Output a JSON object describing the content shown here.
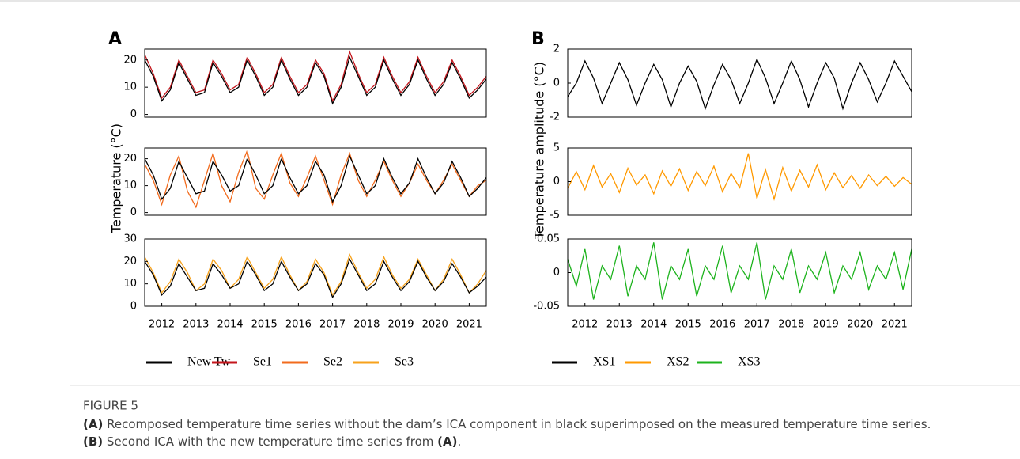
{
  "chart_data": [
    {
      "type": "line",
      "label": "A",
      "x": [
        2011.5,
        2011.75,
        2012,
        2012.25,
        2012.5,
        2012.75,
        2013,
        2013.25,
        2013.5,
        2013.75,
        2014,
        2014.25,
        2014.5,
        2014.75,
        2015,
        2015.25,
        2015.5,
        2015.75,
        2016,
        2016.25,
        2016.5,
        2016.75,
        2017,
        2017.25,
        2017.5,
        2017.75,
        2018,
        2018.25,
        2018.5,
        2018.75,
        2019,
        2019.25,
        2019.5,
        2019.75,
        2020,
        2020.25,
        2020.5,
        2020.75,
        2021,
        2021.25,
        2021.5
      ],
      "xlim": [
        2011.5,
        2021.5
      ],
      "ylim": [
        -1,
        24
      ],
      "yticks": [
        0,
        10,
        20
      ],
      "series": [
        {
          "name": "New Tw",
          "color": "#000000",
          "values": [
            20,
            14,
            5,
            9,
            19,
            13,
            7,
            8,
            19,
            14,
            8,
            10,
            20,
            14,
            7,
            10,
            20,
            13,
            7,
            10,
            19,
            14,
            4,
            10,
            21,
            14,
            7,
            10,
            20,
            13,
            7,
            11,
            20,
            13,
            7,
            11,
            19,
            13,
            6,
            9,
            13
          ]
        },
        {
          "name": "Se1",
          "color": "#c4161c",
          "values": [
            22,
            15,
            6,
            10,
            20,
            14,
            8,
            9,
            20,
            15,
            9,
            11,
            21,
            15,
            8,
            11,
            21,
            14,
            8,
            11,
            20,
            15,
            5,
            11,
            23,
            15,
            8,
            11,
            21,
            14,
            8,
            12,
            21,
            14,
            8,
            12,
            20,
            14,
            7,
            10,
            14
          ]
        }
      ]
    },
    {
      "type": "line",
      "ylabel": "Temperature (°C)",
      "x": [
        2011.5,
        2011.75,
        2012,
        2012.25,
        2012.5,
        2012.75,
        2013,
        2013.25,
        2013.5,
        2013.75,
        2014,
        2014.25,
        2014.5,
        2014.75,
        2015,
        2015.25,
        2015.5,
        2015.75,
        2016,
        2016.25,
        2016.5,
        2016.75,
        2017,
        2017.25,
        2017.5,
        2017.75,
        2018,
        2018.25,
        2018.5,
        2018.75,
        2019,
        2019.25,
        2019.5,
        2019.75,
        2020,
        2020.25,
        2020.5,
        2020.75,
        2021,
        2021.25,
        2021.5
      ],
      "xlim": [
        2011.5,
        2021.5
      ],
      "ylim": [
        -1,
        24
      ],
      "yticks": [
        0,
        10,
        20
      ],
      "series": [
        {
          "name": "New Tw",
          "color": "#000000",
          "values": [
            20,
            14,
            5,
            9,
            19,
            13,
            7,
            8,
            19,
            14,
            8,
            10,
            20,
            14,
            7,
            10,
            20,
            13,
            7,
            10,
            19,
            14,
            4,
            10,
            21,
            14,
            7,
            10,
            20,
            13,
            7,
            11,
            20,
            13,
            7,
            11,
            19,
            13,
            6,
            9,
            13
          ]
        },
        {
          "name": "Se2",
          "color": "#f26b1d",
          "values": [
            18,
            12,
            3,
            14,
            21,
            8,
            2,
            12,
            22,
            10,
            4,
            15,
            23,
            9,
            5,
            14,
            22,
            11,
            6,
            13,
            21,
            12,
            3,
            14,
            22,
            12,
            6,
            12,
            19,
            12,
            6,
            11,
            18,
            12,
            7,
            12,
            18,
            12,
            6,
            10,
            12
          ]
        }
      ]
    },
    {
      "type": "line",
      "x": [
        2011.5,
        2011.75,
        2012,
        2012.25,
        2012.5,
        2012.75,
        2013,
        2013.25,
        2013.5,
        2013.75,
        2014,
        2014.25,
        2014.5,
        2014.75,
        2015,
        2015.25,
        2015.5,
        2015.75,
        2016,
        2016.25,
        2016.5,
        2016.75,
        2017,
        2017.25,
        2017.5,
        2017.75,
        2018,
        2018.25,
        2018.5,
        2018.75,
        2019,
        2019.25,
        2019.5,
        2019.75,
        2020,
        2020.25,
        2020.5,
        2020.75,
        2021,
        2021.25,
        2021.5
      ],
      "xlim": [
        2011.5,
        2021.5
      ],
      "xticks": [
        2012,
        2013,
        2014,
        2015,
        2016,
        2017,
        2018,
        2019,
        2020,
        2021
      ],
      "ylim": [
        0,
        30
      ],
      "yticks": [
        0,
        10,
        20,
        30
      ],
      "series": [
        {
          "name": "New Tw",
          "color": "#000000",
          "values": [
            20,
            14,
            5,
            9,
            19,
            13,
            7,
            8,
            19,
            14,
            8,
            10,
            20,
            14,
            7,
            10,
            20,
            13,
            7,
            10,
            19,
            14,
            4,
            10,
            21,
            14,
            7,
            10,
            20,
            13,
            7,
            11,
            20,
            13,
            7,
            11,
            19,
            13,
            6,
            9,
            13
          ]
        },
        {
          "name": "Se3",
          "color": "#f7a21b",
          "values": [
            22,
            15,
            6,
            11,
            21,
            15,
            7,
            10,
            21,
            16,
            8,
            12,
            22,
            15,
            8,
            12,
            22,
            14,
            7,
            11,
            21,
            15,
            5,
            11,
            23,
            15,
            8,
            12,
            22,
            14,
            8,
            12,
            21,
            14,
            7,
            12,
            21,
            14,
            6,
            10,
            16
          ]
        }
      ]
    },
    {
      "type": "line",
      "label": "B",
      "x": [
        2011.5,
        2011.75,
        2012,
        2012.25,
        2012.5,
        2012.75,
        2013,
        2013.25,
        2013.5,
        2013.75,
        2014,
        2014.25,
        2014.5,
        2014.75,
        2015,
        2015.25,
        2015.5,
        2015.75,
        2016,
        2016.25,
        2016.5,
        2016.75,
        2017,
        2017.25,
        2017.5,
        2017.75,
        2018,
        2018.25,
        2018.5,
        2018.75,
        2019,
        2019.25,
        2019.5,
        2019.75,
        2020,
        2020.25,
        2020.5,
        2020.75,
        2021,
        2021.25,
        2021.5
      ],
      "xlim": [
        2011.5,
        2021.5
      ],
      "ylim": [
        -2,
        2
      ],
      "yticks": [
        -2,
        0,
        2
      ],
      "series": [
        {
          "name": "XS1",
          "color": "#000000",
          "values": [
            -0.8,
            0,
            1.3,
            0.3,
            -1.2,
            0,
            1.2,
            0.2,
            -1.3,
            0,
            1.1,
            0.2,
            -1.4,
            0,
            1,
            0.1,
            -1.5,
            -0.1,
            1.1,
            0.2,
            -1.2,
            0,
            1.4,
            0.3,
            -1.2,
            0,
            1.3,
            0.2,
            -1.4,
            0,
            1.2,
            0.3,
            -1.5,
            0,
            1.2,
            0.2,
            -1.1,
            0,
            1.3,
            0.4,
            -0.5
          ]
        }
      ]
    },
    {
      "type": "line",
      "ylabel": "Temperature amplitude (°C)",
      "x": [
        2011.5,
        2011.75,
        2012,
        2012.25,
        2012.5,
        2012.75,
        2013,
        2013.25,
        2013.5,
        2013.75,
        2014,
        2014.25,
        2014.5,
        2014.75,
        2015,
        2015.25,
        2015.5,
        2015.75,
        2016,
        2016.25,
        2016.5,
        2016.75,
        2017,
        2017.25,
        2017.5,
        2017.75,
        2018,
        2018.25,
        2018.5,
        2018.75,
        2019,
        2019.25,
        2019.5,
        2019.75,
        2020,
        2020.25,
        2020.5,
        2020.75,
        2021,
        2021.25,
        2021.5
      ],
      "xlim": [
        2011.5,
        2021.5
      ],
      "ylim": [
        -5,
        5
      ],
      "yticks": [
        -5,
        0,
        5
      ],
      "series": [
        {
          "name": "XS2",
          "color": "#ff9900",
          "values": [
            -1,
            1.5,
            -1.2,
            2.4,
            -0.8,
            1.2,
            -1.6,
            2,
            -0.5,
            1,
            -1.8,
            1.6,
            -0.7,
            1.9,
            -1.3,
            1.5,
            -0.6,
            2.3,
            -1.5,
            1.2,
            -0.9,
            4.2,
            -2.5,
            1.8,
            -2.6,
            2.1,
            -1.4,
            1.7,
            -0.8,
            2.5,
            -1.2,
            1.3,
            -0.9,
            0.9,
            -1,
            1,
            -0.6,
            0.8,
            -0.7,
            0.6,
            -0.4
          ]
        }
      ]
    },
    {
      "type": "line",
      "x": [
        2011.5,
        2011.75,
        2012,
        2012.25,
        2012.5,
        2012.75,
        2013,
        2013.25,
        2013.5,
        2013.75,
        2014,
        2014.25,
        2014.5,
        2014.75,
        2015,
        2015.25,
        2015.5,
        2015.75,
        2016,
        2016.25,
        2016.5,
        2016.75,
        2017,
        2017.25,
        2017.5,
        2017.75,
        2018,
        2018.25,
        2018.5,
        2018.75,
        2019,
        2019.25,
        2019.5,
        2019.75,
        2020,
        2020.25,
        2020.5,
        2020.75,
        2021,
        2021.25,
        2021.5
      ],
      "xlim": [
        2011.5,
        2021.5
      ],
      "xticks": [
        2012,
        2013,
        2014,
        2015,
        2016,
        2017,
        2018,
        2019,
        2020,
        2021
      ],
      "ylim": [
        -0.05,
        0.05
      ],
      "yticks": [
        -0.05,
        0,
        0.05
      ],
      "series": [
        {
          "name": "XS3",
          "color": "#1db31d",
          "values": [
            0.02,
            -0.02,
            0.035,
            -0.04,
            0.01,
            -0.01,
            0.04,
            -0.035,
            0.01,
            -0.01,
            0.045,
            -0.04,
            0.01,
            -0.01,
            0.035,
            -0.035,
            0.01,
            -0.01,
            0.04,
            -0.03,
            0.01,
            -0.01,
            0.045,
            -0.04,
            0.01,
            -0.01,
            0.035,
            -0.03,
            0.01,
            -0.01,
            0.03,
            -0.03,
            0.01,
            -0.01,
            0.03,
            -0.025,
            0.01,
            -0.01,
            0.03,
            -0.025,
            0.035
          ]
        }
      ]
    }
  ],
  "figure_label": "FIGURE 5",
  "caption": [
    {
      "label": "(A)",
      "text": " Recomposed temperature time series without the dam’s ICA component in black superimposed on the measured temperature time series."
    },
    {
      "label": "(B)",
      "text": " Second ICA with the new temperature time series from ",
      "ref": "(A)",
      "end": "."
    }
  ]
}
